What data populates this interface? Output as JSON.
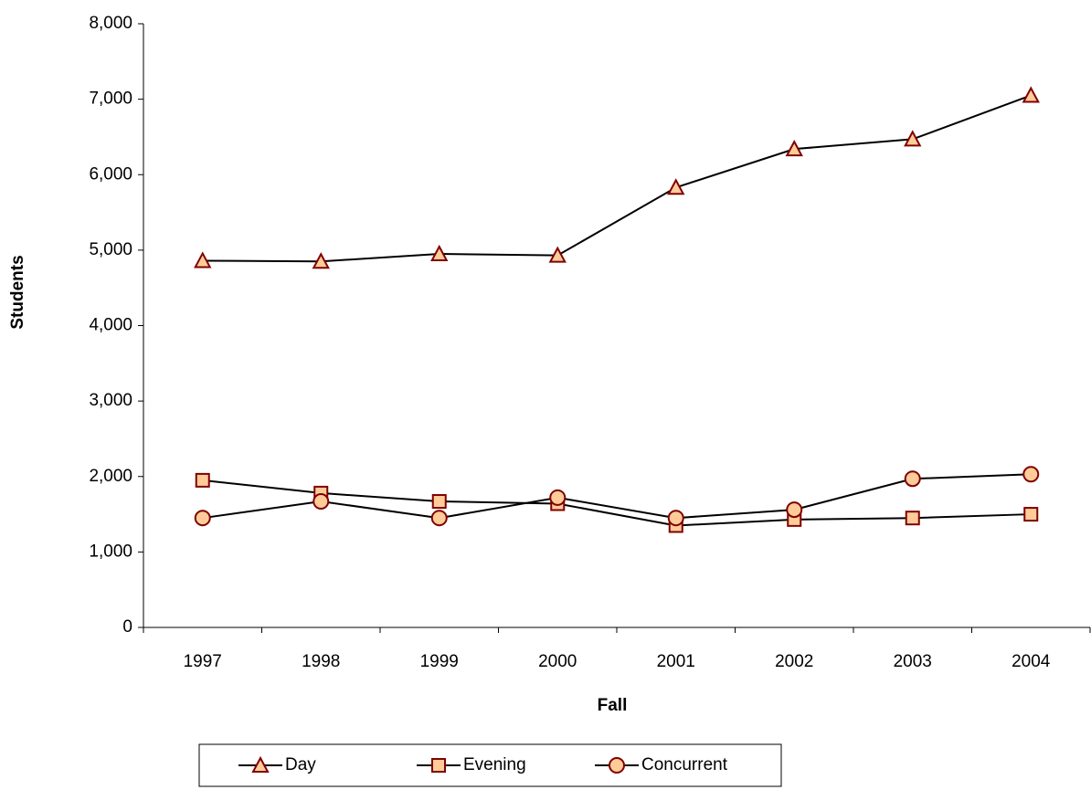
{
  "chart_data": {
    "type": "line",
    "x_label": "Fall",
    "y_label": "Students",
    "categories": [
      "1997",
      "1998",
      "1999",
      "2000",
      "2001",
      "2002",
      "2003",
      "2004"
    ],
    "series": [
      {
        "name": "Day",
        "marker": "triangle",
        "color": "#000000",
        "marker_fill": "#ffcc99",
        "marker_edge": "#800000",
        "values": [
          4860,
          4850,
          4950,
          4930,
          5830,
          6340,
          6470,
          7050
        ]
      },
      {
        "name": "Evening",
        "marker": "square",
        "color": "#000000",
        "marker_fill": "#ffcc99",
        "marker_edge": "#800000",
        "values": [
          1950,
          1780,
          1670,
          1640,
          1350,
          1430,
          1450,
          1500
        ]
      },
      {
        "name": "Concurrent",
        "marker": "circle",
        "color": "#000000",
        "marker_fill": "#ffcc99",
        "marker_edge": "#800000",
        "values": [
          1450,
          1670,
          1450,
          1720,
          1450,
          1560,
          1970,
          2030
        ]
      }
    ],
    "ylim": [
      0,
      8000
    ],
    "yticks": [
      0,
      {
        "value": 1000,
        "label": "1,000"
      },
      {
        "value": 2000,
        "label": "2,000"
      },
      {
        "value": 3000,
        "label": "3,000"
      },
      {
        "value": 4000,
        "label": "4,000"
      },
      {
        "value": 5000,
        "label": "5,000"
      },
      {
        "value": 6000,
        "label": "6,000"
      },
      {
        "value": 7000,
        "label": "7,000"
      },
      {
        "value": 8000,
        "label": "8,000"
      }
    ],
    "grid": false,
    "legend": "bottom"
  }
}
